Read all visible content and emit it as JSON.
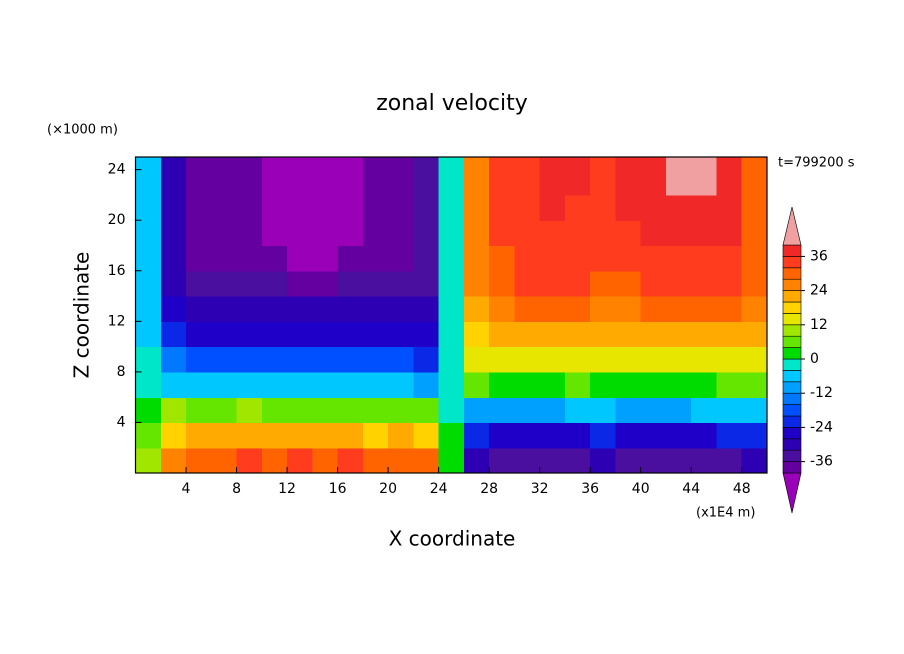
{
  "chart_data": {
    "type": "contour",
    "title": "zonal velocity",
    "y_unit_label": "(×1000 m)",
    "x_unit_label": "(x1E4 m)",
    "time_label": "t=799200 s",
    "xlabel": "X coordinate",
    "ylabel": "Z coordinate",
    "xlim": [
      0,
      50
    ],
    "ylim": [
      0,
      25
    ],
    "xticks": [
      4,
      8,
      12,
      16,
      20,
      24,
      28,
      32,
      36,
      40,
      44,
      48
    ],
    "yticks": [
      4,
      8,
      12,
      16,
      20,
      24
    ],
    "x": [
      1,
      3,
      5,
      7,
      9,
      11,
      13,
      15,
      17,
      19,
      21,
      23,
      25,
      27,
      29,
      31,
      33,
      35,
      37,
      39,
      41,
      43,
      45,
      47,
      49
    ],
    "y": [
      1,
      3,
      5,
      7,
      9,
      11,
      13,
      15,
      17,
      19,
      21,
      23,
      25
    ],
    "z": [
      [
        10,
        26,
        30,
        30,
        32,
        30,
        32,
        30,
        32,
        28,
        30,
        28,
        2,
        -30,
        -34,
        -36,
        -36,
        -36,
        -32,
        -34,
        -36,
        -36,
        -36,
        -34,
        -30
      ],
      [
        6,
        18,
        22,
        20,
        22,
        20,
        20,
        22,
        20,
        18,
        20,
        16,
        0,
        -22,
        -26,
        -26,
        -28,
        -26,
        -22,
        -26,
        -26,
        -28,
        -26,
        -24,
        -22
      ],
      [
        2,
        8,
        6,
        6,
        8,
        6,
        6,
        6,
        6,
        6,
        6,
        4,
        -2,
        -10,
        -12,
        -10,
        -10,
        -8,
        -8,
        -10,
        -10,
        -10,
        -8,
        -8,
        -6
      ],
      [
        -2,
        -6,
        -8,
        -6,
        -8,
        -8,
        -6,
        -6,
        -8,
        -6,
        -8,
        -10,
        -2,
        6,
        2,
        2,
        2,
        4,
        2,
        2,
        2,
        2,
        2,
        4,
        6
      ],
      [
        -4,
        -14,
        -18,
        -18,
        -20,
        -20,
        -18,
        -18,
        -20,
        -18,
        -20,
        -22,
        -2,
        12,
        12,
        12,
        14,
        14,
        12,
        12,
        12,
        14,
        12,
        14,
        14
      ],
      [
        -6,
        -22,
        -26,
        -26,
        -26,
        -28,
        -28,
        -26,
        -28,
        -26,
        -28,
        -28,
        -2,
        18,
        20,
        22,
        22,
        22,
        20,
        20,
        20,
        22,
        20,
        22,
        20
      ],
      [
        -6,
        -28,
        -32,
        -30,
        -30,
        -32,
        -32,
        -32,
        -32,
        -30,
        -32,
        -32,
        -2,
        22,
        26,
        28,
        30,
        28,
        26,
        26,
        28,
        28,
        28,
        28,
        26
      ],
      [
        -6,
        -30,
        -36,
        -34,
        -34,
        -36,
        -37,
        -37,
        -36,
        -34,
        -36,
        -34,
        -2,
        24,
        30,
        32,
        32,
        32,
        30,
        30,
        32,
        32,
        32,
        32,
        28
      ],
      [
        -6,
        -32,
        -37,
        -37,
        -38,
        -38,
        -41,
        -41,
        -38,
        -37,
        -37,
        -36,
        -2,
        26,
        30,
        34,
        34,
        34,
        33,
        34,
        34,
        34,
        34,
        34,
        30
      ],
      [
        -6,
        -32,
        -37,
        -37,
        -39,
        -41,
        -41,
        -41,
        -41,
        -38,
        -38,
        -36,
        -2,
        26,
        32,
        35,
        35,
        34,
        33,
        34,
        36,
        37,
        36,
        36,
        30
      ],
      [
        -6,
        -32,
        -37,
        -38,
        -39,
        -41,
        -42,
        -42,
        -41,
        -38,
        -38,
        -36,
        -2,
        26,
        32,
        35,
        36,
        35,
        34,
        36,
        37,
        38,
        38,
        37,
        30
      ],
      [
        -6,
        -32,
        -38,
        -38,
        -40,
        -41,
        -42,
        -42,
        -41,
        -38,
        -38,
        -36,
        -2,
        26,
        32,
        35,
        37,
        36,
        35,
        37,
        38,
        42,
        42,
        38,
        30
      ],
      [
        -6,
        -32,
        -38,
        -38,
        -40,
        -41,
        -42,
        -42,
        -41,
        -38,
        -38,
        -36,
        -2,
        26,
        32,
        35,
        37,
        36,
        35,
        37,
        38,
        42,
        42,
        38,
        30
      ]
    ],
    "levels": [
      -40,
      -36,
      -32,
      -28,
      -24,
      -20,
      -16,
      -12,
      -8,
      -4,
      0,
      4,
      8,
      12,
      16,
      20,
      24,
      28,
      32,
      36,
      40
    ],
    "colors": [
      "#9a00b8",
      "#6400a0",
      "#4b0fa0",
      "#2d00b4",
      "#1e00c8",
      "#0a28e6",
      "#0050ff",
      "#0078ff",
      "#00a0ff",
      "#00c8ff",
      "#00e6c8",
      "#00dc00",
      "#64e600",
      "#a0e600",
      "#e6e600",
      "#ffd200",
      "#ffaa00",
      "#ff8200",
      "#ff6400",
      "#ff3c1e",
      "#f02828",
      "#f0a0a0"
    ],
    "colorbar_ticks": [
      -36,
      -24,
      -12,
      0,
      12,
      24,
      36
    ]
  }
}
